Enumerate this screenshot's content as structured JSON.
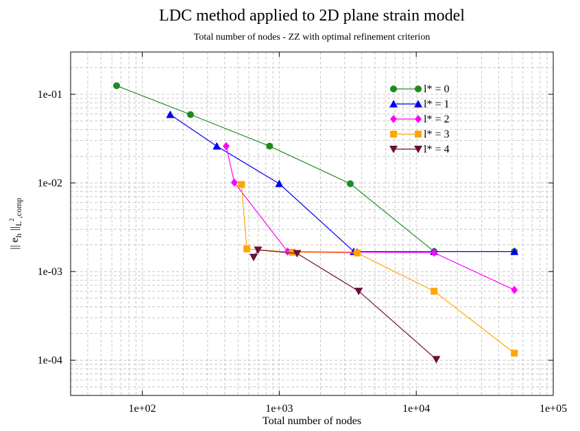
{
  "chart_data": {
    "type": "line",
    "title": "LDC method applied to 2D plane strain model",
    "subtitle": "Total number of nodes - ZZ with optimal refinement criterion",
    "xlabel": "Total number of nodes",
    "ylabel_main": "|| e",
    "ylabel_sub1": "h",
    "ylabel_mid": " ||",
    "ylabel_sub2": "L",
    "ylabel_sup": "2",
    "ylabel_sub3": ",comp",
    "x_scale": "log",
    "y_scale": "log",
    "xlim": [
      30,
      100000
    ],
    "ylim": [
      4e-05,
      0.3
    ],
    "grid": true,
    "legend_position": "top-right",
    "x_ticks": [
      {
        "value": 100,
        "label": "1e+02"
      },
      {
        "value": 1000,
        "label": "1e+03"
      },
      {
        "value": 10000,
        "label": "1e+04"
      },
      {
        "value": 100000,
        "label": "1e+05"
      }
    ],
    "y_ticks": [
      {
        "value": 0.1,
        "label": "1e-01"
      },
      {
        "value": 0.01,
        "label": "1e-02"
      },
      {
        "value": 0.001,
        "label": "1e-03"
      },
      {
        "value": 0.0001,
        "label": "1e-04"
      }
    ],
    "series": [
      {
        "name": "l* = 0",
        "color": "#1f8a1f",
        "marker": "circle",
        "x": [
          65,
          225,
          850,
          3300,
          13500,
          52000
        ],
        "y": [
          0.125,
          0.059,
          0.026,
          0.0098,
          0.00168,
          0.00168
        ]
      },
      {
        "name": "l* = 1",
        "color": "#0000ee",
        "marker": "triangle-up",
        "x": [
          160,
          350,
          1000,
          3500,
          13500,
          52000
        ],
        "y": [
          0.059,
          0.026,
          0.0098,
          0.00168,
          0.00168,
          0.00168
        ]
      },
      {
        "name": "l* = 2",
        "color": "#ff00ff",
        "marker": "diamond",
        "x": [
          410,
          470,
          1150,
          3700,
          13500,
          52000
        ],
        "y": [
          0.026,
          0.0101,
          0.00168,
          0.00165,
          0.00163,
          0.00062
        ]
      },
      {
        "name": "l* = 3",
        "color": "#ffa500",
        "marker": "square",
        "x": [
          530,
          580,
          1250,
          3700,
          13500,
          52000
        ],
        "y": [
          0.0096,
          0.0018,
          0.00165,
          0.00162,
          0.0006,
          0.00012
        ]
      },
      {
        "name": "l* = 4",
        "color": "#6b0f3a",
        "marker": "triangle-down",
        "x": [
          650,
          700,
          1350,
          3800,
          14000
        ],
        "y": [
          0.00145,
          0.00175,
          0.0016,
          0.0006,
          0.000102
        ]
      }
    ]
  }
}
